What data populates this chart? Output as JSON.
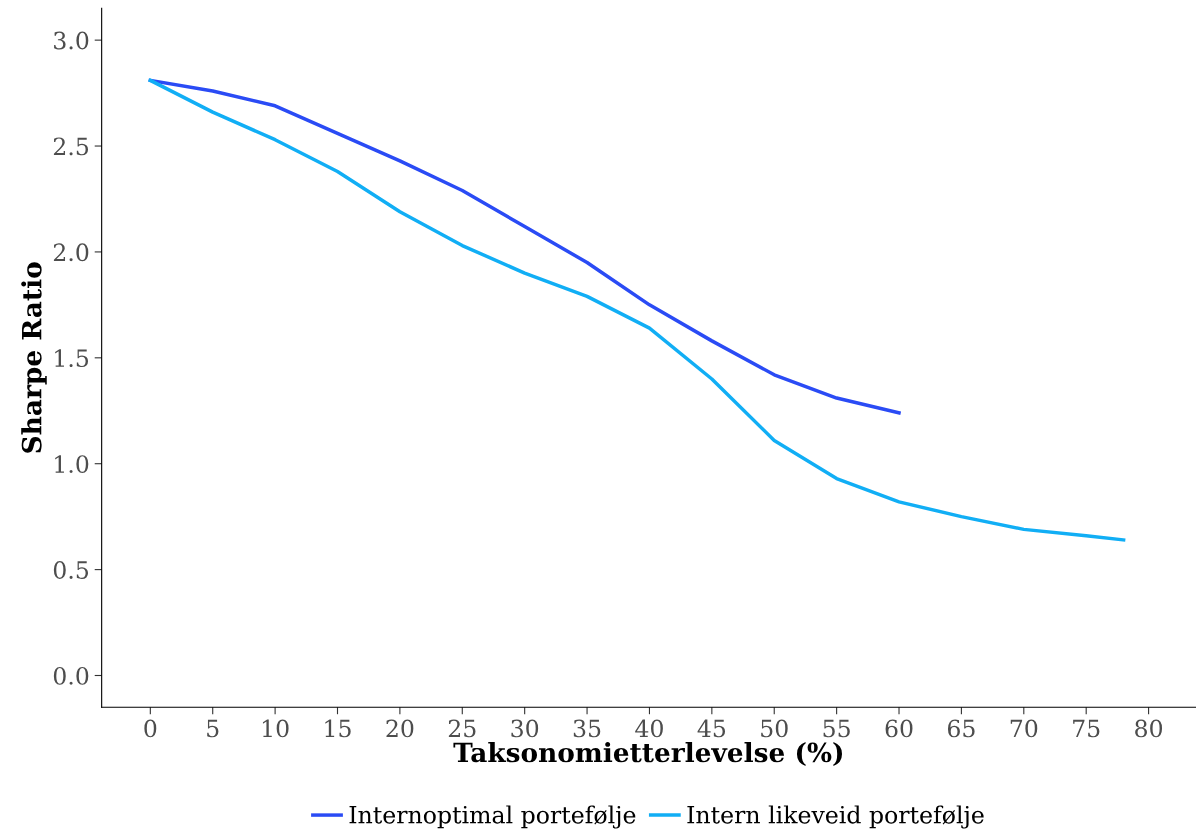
{
  "chart_data": {
    "type": "line",
    "xlabel": "Taksonomietterlevelse (%)",
    "ylabel": "Sharpe Ratio",
    "xlim": [
      -3.9,
      83.8
    ],
    "ylim": [
      -0.15,
      3.15
    ],
    "xticks": [
      0,
      5,
      10,
      15,
      20,
      25,
      30,
      35,
      40,
      45,
      50,
      55,
      60,
      65,
      70,
      75,
      80
    ],
    "yticks": [
      {
        "value": 0,
        "label": "0.0"
      },
      {
        "value": 0.5,
        "label": "0.5"
      },
      {
        "value": 1,
        "label": "1.0"
      },
      {
        "value": 1.5,
        "label": "1.5"
      },
      {
        "value": 2,
        "label": "2.0"
      },
      {
        "value": 2.5,
        "label": "2.5"
      },
      {
        "value": 3,
        "label": "3.0"
      }
    ],
    "grid": false,
    "legend": "bottom",
    "marker": "none",
    "line_style": "solid",
    "series": [
      {
        "name": "Internoptimal portefølje",
        "color": "#2a4bf5",
        "x": [
          0,
          5,
          10,
          15,
          20,
          25,
          30,
          35,
          36,
          40,
          45,
          50,
          55,
          60
        ],
        "values": [
          2.81,
          2.76,
          2.69,
          2.56,
          2.43,
          2.29,
          2.12,
          1.95,
          1.91,
          1.75,
          1.58,
          1.42,
          1.31,
          1.24
        ]
      },
      {
        "name": "Intern likeveid portefølje",
        "color": "#11aef5",
        "x": [
          0,
          5,
          10,
          15,
          20,
          25,
          30,
          35,
          40,
          45,
          50,
          55,
          60,
          65,
          70,
          75,
          78
        ],
        "values": [
          2.81,
          2.66,
          2.53,
          2.38,
          2.19,
          2.03,
          1.9,
          1.79,
          1.64,
          1.4,
          1.11,
          0.93,
          0.82,
          0.75,
          0.69,
          0.66,
          0.64
        ]
      }
    ]
  }
}
